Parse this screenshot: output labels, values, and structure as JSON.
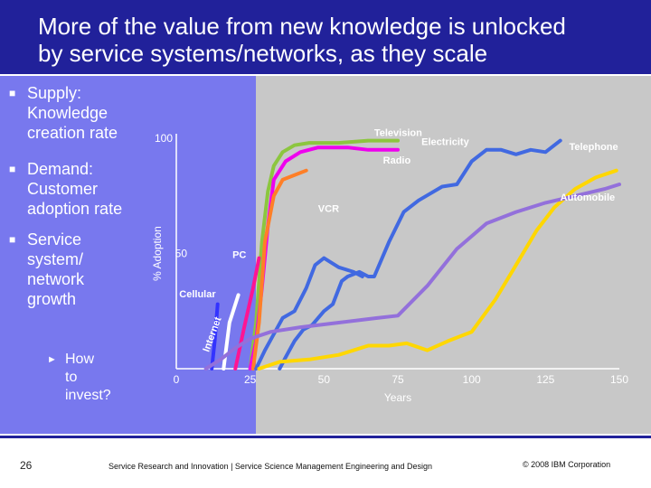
{
  "title": {
    "line1": "More of the value from new knowledge is unlocked",
    "line2": "by service systems/networks, as they scale"
  },
  "bullets": [
    {
      "lines": [
        "Supply:",
        "Knowledge",
        "creation rate"
      ]
    },
    {
      "lines": [
        "Demand:",
        "Customer",
        "adoption rate"
      ]
    },
    {
      "lines": [
        "Service",
        "system/",
        "network",
        "growth"
      ]
    }
  ],
  "sub_bullet": {
    "lines": [
      "How",
      "to",
      "invest?"
    ]
  },
  "footer": {
    "page_number": "26",
    "text": "Service Research and Innovation  |  Service Science Management Engineering and Design",
    "copyright": "© 2008 IBM Corporation"
  },
  "colors": {
    "title_bg": "#21219a",
    "left_panel": "#7878ee",
    "right_panel": "#c8c8c8"
  },
  "chart_data": {
    "type": "line",
    "ylabel": "% Adoption",
    "xlabel": "Years",
    "x_ticks": [
      "0",
      "25",
      "50",
      "75",
      "100",
      "125",
      "150"
    ],
    "y_ticks": [
      "100",
      "50"
    ],
    "xlim": [
      0,
      150
    ],
    "ylim": [
      0,
      100
    ],
    "grid": false,
    "series": [
      {
        "name": "Television",
        "color": "#8cc63f",
        "x": [
          25,
          27,
          29,
          31,
          33,
          36,
          40,
          45,
          55,
          65,
          75
        ],
        "y": [
          0,
          20,
          55,
          77,
          88,
          94,
          97,
          98,
          98,
          99,
          99
        ]
      },
      {
        "name": "Radio",
        "color": "#ee00ee",
        "x": [
          25,
          27,
          29,
          31,
          33,
          37,
          42,
          48,
          58,
          65,
          75
        ],
        "y": [
          0,
          12,
          35,
          62,
          82,
          90,
          94,
          96,
          96,
          95,
          95
        ]
      },
      {
        "name": "VCR",
        "color": "#ff7f27",
        "x": [
          26,
          28,
          30,
          33,
          36,
          40,
          44
        ],
        "y": [
          0,
          20,
          55,
          75,
          82,
          84,
          86
        ]
      },
      {
        "name": "PC",
        "color": "#ff1493",
        "x": [
          20,
          23,
          26,
          28
        ],
        "y": [
          0,
          18,
          35,
          48
        ]
      },
      {
        "name": "Cellular",
        "color": "#ffffff",
        "x": [
          16,
          18,
          21
        ],
        "y": [
          0,
          20,
          32
        ]
      },
      {
        "name": "Internet",
        "color": "#3333ff",
        "x": [
          12,
          13,
          14
        ],
        "y": [
          0,
          12,
          28
        ]
      },
      {
        "name": "Electricity",
        "color": "#4169e1",
        "x": [
          35,
          37,
          40,
          43,
          46,
          48,
          50,
          53,
          56,
          58,
          62,
          65,
          67,
          72,
          77,
          82,
          86,
          90,
          95,
          100,
          105,
          110,
          115,
          120,
          125,
          130
        ],
        "y": [
          0,
          5,
          12,
          17,
          19,
          22,
          25,
          28,
          38,
          40,
          42,
          40,
          40,
          55,
          68,
          73,
          76,
          79,
          80,
          90,
          95,
          95,
          93,
          95,
          94,
          99
        ]
      },
      {
        "name": "Telephone",
        "color": "#4169e1",
        "x": [
          27,
          30,
          33,
          36,
          40,
          44,
          47,
          50,
          55,
          60,
          63
        ],
        "y": [
          0,
          8,
          15,
          22,
          25,
          35,
          45,
          48,
          44,
          42,
          40
        ]
      },
      {
        "name": "Automobile",
        "color": "#ffd700",
        "x": [
          28,
          35,
          45,
          55,
          65,
          72,
          78,
          85,
          92,
          100,
          108,
          115,
          122,
          128,
          135,
          142,
          149
        ],
        "y": [
          0,
          3,
          4,
          6,
          10,
          10,
          11,
          8,
          12,
          16,
          30,
          45,
          60,
          70,
          78,
          83,
          86
        ]
      },
      {
        "name": "",
        "color": "#9370db",
        "x": [
          10,
          15,
          20,
          25,
          32,
          42,
          55,
          68,
          75,
          85,
          95,
          105,
          115,
          125,
          135,
          145,
          150
        ],
        "y": [
          0,
          4,
          9,
          13,
          16,
          18,
          20,
          22,
          23,
          36,
          52,
          63,
          68,
          72,
          75,
          78,
          80
        ]
      }
    ],
    "annotations": [
      {
        "text": "Television"
      },
      {
        "text": "Electricity"
      },
      {
        "text": "Telephone"
      },
      {
        "text": "Radio"
      },
      {
        "text": "Automobile"
      },
      {
        "text": "VCR"
      },
      {
        "text": "PC"
      },
      {
        "text": "Cellular"
      },
      {
        "text": "Internet"
      }
    ]
  }
}
